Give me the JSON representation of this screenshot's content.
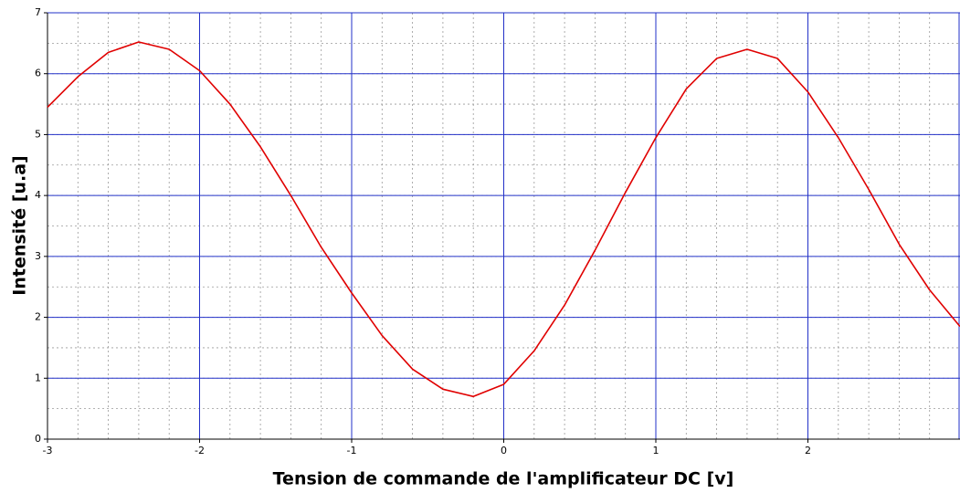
{
  "chart_data": {
    "type": "line",
    "xlabel": "Tension de commande de l'amplificateur DC [v]",
    "ylabel": "Intensité [u.a]",
    "x": [
      -3,
      -2.8,
      -2.6,
      -2.4,
      -2.2,
      -2,
      -1.8,
      -1.6,
      -1.4,
      -1.2,
      -1,
      -0.8,
      -0.6,
      -0.4,
      -0.2,
      0,
      0.2,
      0.4,
      0.6,
      0.8,
      1,
      1.2,
      1.4,
      1.6,
      1.8,
      2,
      2.2,
      2.4,
      2.6,
      2.8,
      3
    ],
    "values": [
      5.45,
      5.95,
      6.35,
      6.52,
      6.4,
      6.05,
      5.5,
      4.8,
      4.0,
      3.15,
      2.4,
      1.7,
      1.15,
      0.82,
      0.7,
      0.9,
      1.45,
      2.2,
      3.1,
      4.05,
      4.95,
      5.75,
      6.25,
      6.4,
      6.25,
      5.7,
      4.95,
      4.1,
      3.2,
      2.45,
      1.85
    ],
    "color": "#e00000",
    "xlim": [
      -3,
      3
    ],
    "ylim": [
      0,
      7
    ],
    "xticks": [
      -3,
      -2,
      -1,
      0,
      1,
      2
    ],
    "yticks": [
      0,
      1,
      2,
      3,
      4,
      5,
      6,
      7
    ],
    "grid": true,
    "minor_grid": {
      "x": 0.2,
      "y": 0.5
    }
  }
}
